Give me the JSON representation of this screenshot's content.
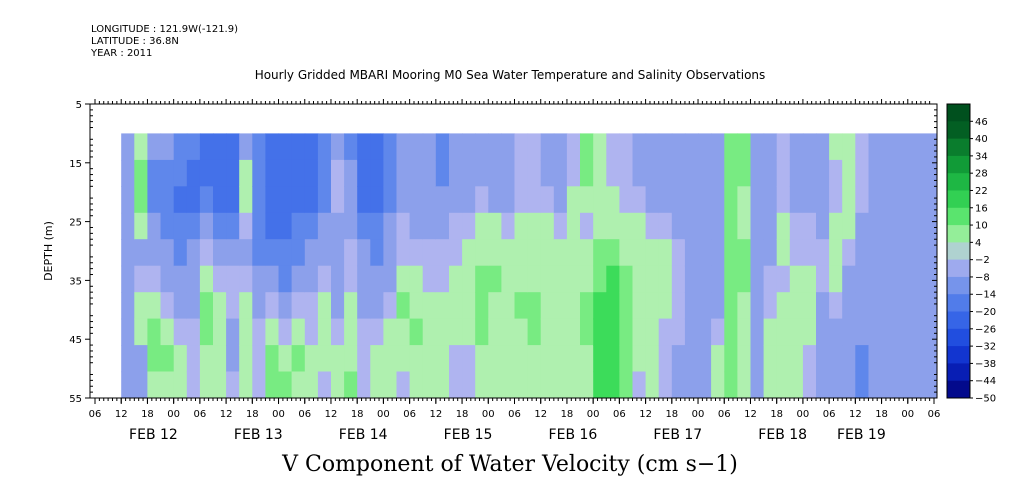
{
  "header": {
    "longitude": "LONGITUDE : 121.9W(-121.9)",
    "latitude": "LATITUDE : 36.8N",
    "year": "YEAR : 2011"
  },
  "chart_data": {
    "type": "heatmap",
    "title": "Hourly Gridded MBARI Mooring M0 Sea Water Temperature and Salinity Observations",
    "variable_label": "V Component of Water Velocity (cm s−1)",
    "ylabel": "DEPTH (m)",
    "ylim": [
      5,
      55
    ],
    "y_inverted": true,
    "y_ticks": [
      5,
      15,
      25,
      35,
      45,
      55
    ],
    "x_start_hour": "06",
    "x_hour_ticks": [
      "06",
      "12",
      "18",
      "00",
      "06",
      "12",
      "18",
      "00",
      "06",
      "12",
      "18",
      "00",
      "06",
      "12",
      "18",
      "00",
      "06",
      "12",
      "18",
      "00",
      "06",
      "12",
      "18",
      "00",
      "06",
      "12",
      "18",
      "00",
      "06",
      "12",
      "18",
      "00",
      "06"
    ],
    "date_labels": [
      {
        "label": "FEB 12",
        "tick_index": 2
      },
      {
        "label": "FEB 13",
        "tick_index": 6
      },
      {
        "label": "FEB 14",
        "tick_index": 10
      },
      {
        "label": "FEB 15",
        "tick_index": 14
      },
      {
        "label": "FEB 16",
        "tick_index": 18
      },
      {
        "label": "FEB 17",
        "tick_index": 22
      },
      {
        "label": "FEB 18",
        "tick_index": 26
      },
      {
        "label": "FEB 19",
        "tick_index": 29
      }
    ],
    "data_start_tick": 1,
    "data_depth_range": [
      10,
      55
    ],
    "colorbar": {
      "levels": [
        -50,
        -44,
        -38,
        -32,
        -26,
        -20,
        -14,
        -8,
        -2,
        4,
        10,
        16,
        22,
        28,
        34,
        40,
        46
      ],
      "labels": [
        "46",
        "40",
        "34",
        "28",
        "22",
        "16",
        "10",
        "4",
        "−2",
        "−8",
        "−14",
        "−20",
        "−26",
        "−32",
        "−38",
        "−44",
        "−50"
      ]
    },
    "columns": [
      {
        "tick": 1.0,
        "v": [
          -8,
          -8,
          -8,
          -8,
          -8,
          -8,
          -8,
          -8,
          -8,
          -8
        ]
      },
      {
        "tick": 1.5,
        "v": [
          4,
          10,
          10,
          4,
          -8,
          -2,
          4,
          4,
          -8,
          -8
        ]
      },
      {
        "tick": 2.0,
        "v": [
          -8,
          -14,
          -14,
          -8,
          -8,
          -2,
          4,
          10,
          10,
          4
        ]
      },
      {
        "tick": 2.5,
        "v": [
          -8,
          -14,
          -14,
          -14,
          -8,
          -8,
          -2,
          4,
          10,
          4
        ]
      },
      {
        "tick": 3.0,
        "v": [
          -14,
          -14,
          -20,
          -14,
          -14,
          -8,
          -8,
          -2,
          4,
          4
        ]
      },
      {
        "tick": 3.5,
        "v": [
          -14,
          -20,
          -20,
          -14,
          -8,
          -8,
          -8,
          -2,
          -2,
          -2
        ]
      },
      {
        "tick": 4.0,
        "v": [
          -20,
          -20,
          -14,
          -8,
          -2,
          4,
          10,
          10,
          4,
          4
        ]
      },
      {
        "tick": 4.5,
        "v": [
          -20,
          -20,
          -20,
          -14,
          -8,
          -2,
          4,
          4,
          4,
          4
        ]
      },
      {
        "tick": 5.0,
        "v": [
          -20,
          -20,
          -20,
          -14,
          -8,
          -2,
          -2,
          -8,
          -8,
          -2
        ]
      },
      {
        "tick": 5.5,
        "v": [
          -8,
          4,
          4,
          -2,
          -8,
          -2,
          4,
          4,
          4,
          4
        ]
      },
      {
        "tick": 6.0,
        "v": [
          -14,
          -14,
          -14,
          -14,
          -14,
          -8,
          -8,
          -2,
          -2,
          -2
        ]
      },
      {
        "tick": 6.5,
        "v": [
          -20,
          -20,
          -20,
          -20,
          -14,
          -8,
          -2,
          4,
          10,
          10
        ]
      },
      {
        "tick": 7.0,
        "v": [
          -20,
          -20,
          -20,
          -20,
          -14,
          -14,
          -8,
          -2,
          4,
          10
        ]
      },
      {
        "tick": 7.5,
        "v": [
          -20,
          -20,
          -20,
          -14,
          -14,
          -8,
          -2,
          4,
          10,
          4
        ]
      },
      {
        "tick": 8.0,
        "v": [
          -20,
          -20,
          -20,
          -14,
          -8,
          -8,
          -2,
          -2,
          4,
          4
        ]
      },
      {
        "tick": 8.5,
        "v": [
          -14,
          -14,
          -14,
          -8,
          -8,
          -2,
          4,
          4,
          4,
          -2
        ]
      },
      {
        "tick": 9.0,
        "v": [
          -8,
          -2,
          -2,
          -8,
          -8,
          -8,
          -8,
          -2,
          4,
          4
        ]
      },
      {
        "tick": 9.5,
        "v": [
          -14,
          -8,
          -8,
          -8,
          -2,
          -2,
          4,
          4,
          4,
          10
        ]
      },
      {
        "tick": 10.0,
        "v": [
          -20,
          -20,
          -20,
          -14,
          -8,
          -8,
          -8,
          -2,
          -2,
          -2
        ]
      },
      {
        "tick": 10.5,
        "v": [
          -20,
          -20,
          -20,
          -14,
          -14,
          -8,
          -8,
          -2,
          4,
          4
        ]
      },
      {
        "tick": 11.0,
        "v": [
          -14,
          -14,
          -14,
          -8,
          -8,
          -8,
          -2,
          4,
          4,
          4
        ]
      },
      {
        "tick": 11.5,
        "v": [
          -8,
          -8,
          -8,
          -2,
          -2,
          4,
          10,
          4,
          4,
          -2
        ]
      },
      {
        "tick": 12.0,
        "v": [
          -8,
          -8,
          -8,
          -8,
          -2,
          4,
          4,
          10,
          4,
          4
        ]
      },
      {
        "tick": 12.5,
        "v": [
          -8,
          -8,
          -8,
          -8,
          -2,
          -2,
          4,
          4,
          4,
          4
        ]
      },
      {
        "tick": 13.0,
        "v": [
          -14,
          -14,
          -8,
          -8,
          -2,
          -2,
          4,
          4,
          4,
          4
        ]
      },
      {
        "tick": 13.5,
        "v": [
          -8,
          -8,
          -8,
          -2,
          -2,
          4,
          4,
          4,
          -2,
          -2
        ]
      },
      {
        "tick": 14.0,
        "v": [
          -8,
          -8,
          -8,
          -2,
          4,
          4,
          4,
          4,
          -2,
          -2
        ]
      },
      {
        "tick": 14.5,
        "v": [
          -8,
          -8,
          -2,
          4,
          4,
          10,
          10,
          10,
          4,
          4
        ]
      },
      {
        "tick": 15.0,
        "v": [
          -8,
          -8,
          -8,
          4,
          4,
          10,
          4,
          4,
          4,
          4
        ]
      },
      {
        "tick": 15.5,
        "v": [
          -8,
          -8,
          -8,
          -2,
          4,
          4,
          4,
          4,
          4,
          4
        ]
      },
      {
        "tick": 16.0,
        "v": [
          -2,
          -2,
          -2,
          4,
          4,
          4,
          10,
          4,
          4,
          4
        ]
      },
      {
        "tick": 16.5,
        "v": [
          -2,
          -2,
          -2,
          4,
          4,
          4,
          10,
          10,
          4,
          4
        ]
      },
      {
        "tick": 17.0,
        "v": [
          -8,
          -8,
          -2,
          4,
          4,
          4,
          4,
          4,
          4,
          4
        ]
      },
      {
        "tick": 17.5,
        "v": [
          -8,
          -8,
          -8,
          -2,
          4,
          4,
          4,
          4,
          4,
          4
        ]
      },
      {
        "tick": 18.0,
        "v": [
          -2,
          -2,
          4,
          4,
          4,
          4,
          4,
          4,
          4,
          4
        ]
      },
      {
        "tick": 18.5,
        "v": [
          10,
          10,
          4,
          -2,
          4,
          4,
          10,
          10,
          4,
          4
        ]
      },
      {
        "tick": 19.0,
        "v": [
          4,
          4,
          4,
          4,
          10,
          10,
          16,
          16,
          16,
          16
        ]
      },
      {
        "tick": 19.5,
        "v": [
          -2,
          -2,
          4,
          4,
          10,
          16,
          16,
          16,
          16,
          16
        ]
      },
      {
        "tick": 20.0,
        "v": [
          -2,
          -2,
          -2,
          4,
          4,
          10,
          10,
          10,
          10,
          10
        ]
      },
      {
        "tick": 20.5,
        "v": [
          -8,
          -8,
          -2,
          4,
          4,
          4,
          4,
          4,
          4,
          -2
        ]
      },
      {
        "tick": 21.0,
        "v": [
          -8,
          -8,
          -8,
          -2,
          4,
          4,
          4,
          4,
          4,
          4
        ]
      },
      {
        "tick": 21.5,
        "v": [
          -8,
          -8,
          -8,
          -2,
          4,
          4,
          4,
          -2,
          -2,
          -2
        ]
      },
      {
        "tick": 22.0,
        "v": [
          -8,
          -8,
          -8,
          -8,
          -2,
          -2,
          -2,
          -2,
          -8,
          -8
        ]
      },
      {
        "tick": 22.5,
        "v": [
          -8,
          -8,
          -8,
          -8,
          -8,
          -8,
          -8,
          -8,
          -8,
          -8
        ]
      },
      {
        "tick": 23.0,
        "v": [
          -8,
          -8,
          -8,
          -8,
          -8,
          -8,
          -8,
          -8,
          -8,
          -8
        ]
      },
      {
        "tick": 23.5,
        "v": [
          -8,
          -8,
          -8,
          -8,
          -8,
          -8,
          -8,
          -2,
          4,
          4
        ]
      },
      {
        "tick": 24.0,
        "v": [
          10,
          10,
          10,
          10,
          10,
          10,
          10,
          10,
          10,
          10
        ]
      },
      {
        "tick": 24.5,
        "v": [
          10,
          10,
          4,
          4,
          10,
          10,
          4,
          4,
          4,
          4
        ]
      },
      {
        "tick": 25.0,
        "v": [
          -8,
          -8,
          -8,
          -8,
          -8,
          -8,
          -8,
          -8,
          -8,
          -8
        ]
      },
      {
        "tick": 25.5,
        "v": [
          -8,
          -8,
          -8,
          -8,
          -8,
          -2,
          -2,
          4,
          4,
          4
        ]
      },
      {
        "tick": 26.0,
        "v": [
          -2,
          -2,
          -2,
          4,
          4,
          -2,
          4,
          4,
          4,
          4
        ]
      },
      {
        "tick": 26.5,
        "v": [
          -8,
          -8,
          -8,
          -2,
          -2,
          4,
          4,
          4,
          4,
          4
        ]
      },
      {
        "tick": 27.0,
        "v": [
          -8,
          -8,
          -8,
          -2,
          -2,
          4,
          4,
          4,
          -2,
          -2
        ]
      },
      {
        "tick": 27.5,
        "v": [
          -8,
          -8,
          -8,
          -8,
          -2,
          -2,
          -8,
          -8,
          -8,
          -8
        ]
      },
      {
        "tick": 28.0,
        "v": [
          4,
          -2,
          -2,
          4,
          4,
          4,
          -2,
          -8,
          -8,
          -8
        ]
      },
      {
        "tick": 28.5,
        "v": [
          4,
          4,
          4,
          4,
          -2,
          -8,
          -8,
          -8,
          -8,
          -8
        ]
      },
      {
        "tick": 29.0,
        "v": [
          -2,
          -2,
          -2,
          -8,
          -8,
          -8,
          -8,
          -8,
          -14,
          -14
        ]
      },
      {
        "tick": 29.5,
        "v": [
          -8,
          -8,
          -8,
          -8,
          -8,
          -8,
          -8,
          -8,
          -8,
          -8
        ]
      }
    ]
  }
}
